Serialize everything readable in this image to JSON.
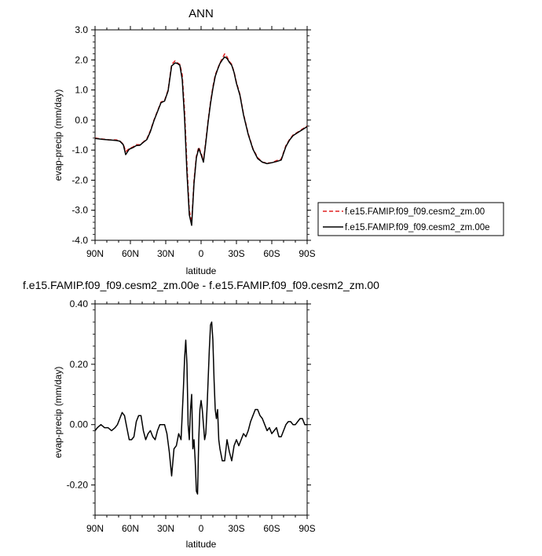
{
  "chart_data": [
    {
      "type": "line",
      "title": "ANN",
      "xlabel": "latitude",
      "ylabel": "evap-precip (mm/day)",
      "xlim": [
        90,
        -90
      ],
      "ylim": [
        -4.0,
        3.0
      ],
      "x_ticks": [
        90,
        60,
        30,
        0,
        -30,
        -60,
        -90
      ],
      "x_tick_labels": [
        "90N",
        "60N",
        "30N",
        "0",
        "30S",
        "60S",
        "90S"
      ],
      "y_ticks": [
        -4.0,
        -3.0,
        -2.0,
        -1.0,
        0.0,
        1.0,
        2.0,
        3.0
      ],
      "y_tick_labels": [
        "-4.0",
        "-3.0",
        "-2.0",
        "-1.0",
        "0.0",
        "1.0",
        "2.0",
        "3.0"
      ],
      "grid": false,
      "legend_position": "right",
      "series": [
        {
          "name": "f.e15.FAMIP.f09_f09.cesm2_zm.00",
          "color": "#e02020",
          "dash": "dashed",
          "x": [
            90,
            84,
            78,
            72,
            69,
            66,
            64,
            61,
            58,
            55,
            52,
            49,
            46,
            43,
            40,
            37,
            34,
            31,
            28,
            25,
            22,
            20,
            18,
            16,
            14,
            12,
            10,
            8,
            6,
            4,
            2,
            0,
            -2,
            -4,
            -6,
            -8,
            -10,
            -12,
            -14,
            -16,
            -18,
            -20,
            -22,
            -24,
            -26,
            -28,
            -30,
            -33,
            -36,
            -40,
            -44,
            -48,
            -52,
            -56,
            -60,
            -64,
            -68,
            -72,
            -75,
            -78,
            -82,
            -86,
            -90
          ],
          "y": [
            -0.6,
            -0.63,
            -0.66,
            -0.66,
            -0.7,
            -0.8,
            -1.05,
            -0.95,
            -0.9,
            -0.82,
            -0.82,
            -0.73,
            -0.62,
            -0.35,
            0.0,
            0.3,
            0.6,
            0.65,
            1.0,
            1.85,
            1.97,
            1.9,
            1.85,
            1.5,
            0.3,
            -1.5,
            -3.0,
            -3.4,
            -2.0,
            -1.2,
            -0.9,
            -1.1,
            -1.35,
            -0.7,
            0.0,
            0.6,
            1.1,
            1.5,
            1.7,
            1.9,
            2.05,
            2.2,
            2.1,
            1.95,
            1.85,
            1.6,
            1.25,
            0.85,
            0.2,
            -0.45,
            -0.95,
            -1.25,
            -1.4,
            -1.43,
            -1.42,
            -1.35,
            -1.3,
            -0.85,
            -0.65,
            -0.5,
            -0.4,
            -0.3,
            -0.2
          ]
        },
        {
          "name": "f.e15.FAMIP.f09_f09.cesm2_zm.00e",
          "color": "#000000",
          "dash": "solid",
          "x": [
            90,
            84,
            78,
            72,
            69,
            66,
            64,
            61,
            58,
            55,
            52,
            49,
            46,
            43,
            40,
            37,
            34,
            31,
            28,
            25,
            22,
            20,
            18,
            16,
            14,
            12,
            10,
            8,
            6,
            4,
            2,
            0,
            -2,
            -4,
            -6,
            -8,
            -10,
            -12,
            -14,
            -16,
            -18,
            -20,
            -22,
            -24,
            -26,
            -28,
            -30,
            -33,
            -36,
            -40,
            -44,
            -48,
            -52,
            -56,
            -60,
            -64,
            -68,
            -72,
            -75,
            -78,
            -82,
            -86,
            -90
          ],
          "y": [
            -0.61,
            -0.64,
            -0.66,
            -0.68,
            -0.7,
            -0.82,
            -1.15,
            -0.97,
            -0.92,
            -0.85,
            -0.84,
            -0.74,
            -0.65,
            -0.38,
            -0.02,
            0.28,
            0.58,
            0.63,
            0.97,
            1.8,
            1.9,
            1.88,
            1.82,
            1.35,
            0.05,
            -1.75,
            -3.15,
            -3.5,
            -2.1,
            -1.25,
            -0.95,
            -1.15,
            -1.4,
            -0.75,
            -0.05,
            0.55,
            1.05,
            1.45,
            1.68,
            1.88,
            2.0,
            2.1,
            2.05,
            1.92,
            1.82,
            1.58,
            1.22,
            0.82,
            0.17,
            -0.48,
            -0.97,
            -1.28,
            -1.4,
            -1.45,
            -1.42,
            -1.38,
            -1.33,
            -0.88,
            -0.67,
            -0.52,
            -0.42,
            -0.32,
            -0.22
          ]
        }
      ]
    },
    {
      "type": "line",
      "title": "f.e15.FAMIP.f09_f09.cesm2_zm.00e - f.e15.FAMIP.f09_f09.cesm2_zm.00",
      "xlabel": "latitude",
      "ylabel": "evap-precip (mm/day)",
      "xlim": [
        90,
        -90
      ],
      "ylim": [
        -0.3,
        0.4
      ],
      "x_ticks": [
        90,
        60,
        30,
        0,
        -30,
        -60,
        -90
      ],
      "x_tick_labels": [
        "90N",
        "60N",
        "30N",
        "0",
        "30S",
        "60S",
        "90S"
      ],
      "y_ticks": [
        -0.2,
        0.0,
        0.2,
        0.4
      ],
      "y_tick_labels": [
        "-0.20",
        "0.00",
        "0.20",
        "0.40"
      ],
      "grid": false,
      "series": [
        {
          "color": "#000000",
          "x": [
            90,
            88,
            85,
            82,
            79,
            76,
            73,
            71,
            69,
            67,
            65,
            63,
            61,
            59,
            57,
            55,
            53,
            51,
            49,
            47,
            45,
            43,
            41,
            39,
            37,
            35,
            33,
            31,
            29,
            27,
            25,
            23,
            21,
            19,
            17,
            15,
            14,
            13,
            12,
            11,
            10,
            9,
            8,
            7,
            6,
            5,
            4,
            3,
            2,
            1,
            0,
            -1,
            -2,
            -3,
            -4,
            -5,
            -6,
            -7,
            -8,
            -9,
            -10,
            -11,
            -12,
            -13,
            -14,
            -15,
            -16,
            -18,
            -20,
            -22,
            -24,
            -26,
            -28,
            -30,
            -32,
            -34,
            -36,
            -38,
            -40,
            -42,
            -44,
            -46,
            -48,
            -50,
            -52,
            -54,
            -56,
            -58,
            -60,
            -62,
            -64,
            -66,
            -68,
            -70,
            -72,
            -74,
            -76,
            -78,
            -80,
            -82,
            -84,
            -86,
            -88,
            -90
          ],
          "y": [
            -0.02,
            -0.01,
            0.0,
            -0.01,
            -0.01,
            -0.02,
            -0.01,
            0.0,
            0.02,
            0.04,
            0.03,
            -0.01,
            -0.05,
            -0.05,
            -0.04,
            0.01,
            0.03,
            0.03,
            -0.02,
            -0.05,
            -0.03,
            -0.02,
            -0.04,
            -0.05,
            -0.02,
            0.0,
            0.0,
            0.0,
            -0.03,
            -0.09,
            -0.17,
            -0.08,
            -0.07,
            -0.03,
            -0.05,
            0.12,
            0.22,
            0.28,
            0.2,
            0.0,
            -0.05,
            0.05,
            0.1,
            -0.08,
            -0.05,
            -0.12,
            -0.22,
            -0.23,
            -0.05,
            0.05,
            0.08,
            0.05,
            0.0,
            -0.05,
            -0.03,
            0.05,
            0.15,
            0.25,
            0.33,
            0.34,
            0.28,
            0.15,
            0.05,
            0.02,
            0.05,
            -0.05,
            -0.08,
            -0.12,
            -0.12,
            -0.05,
            -0.09,
            -0.12,
            -0.07,
            -0.05,
            -0.07,
            -0.05,
            -0.03,
            -0.04,
            -0.02,
            0.01,
            0.03,
            0.05,
            0.05,
            0.03,
            0.02,
            0.0,
            -0.02,
            -0.01,
            -0.03,
            -0.02,
            -0.01,
            -0.04,
            -0.04,
            -0.02,
            0.0,
            0.01,
            0.01,
            0.0,
            0.0,
            0.01,
            0.02,
            0.02,
            0.0,
            0.0
          ]
        }
      ]
    }
  ]
}
